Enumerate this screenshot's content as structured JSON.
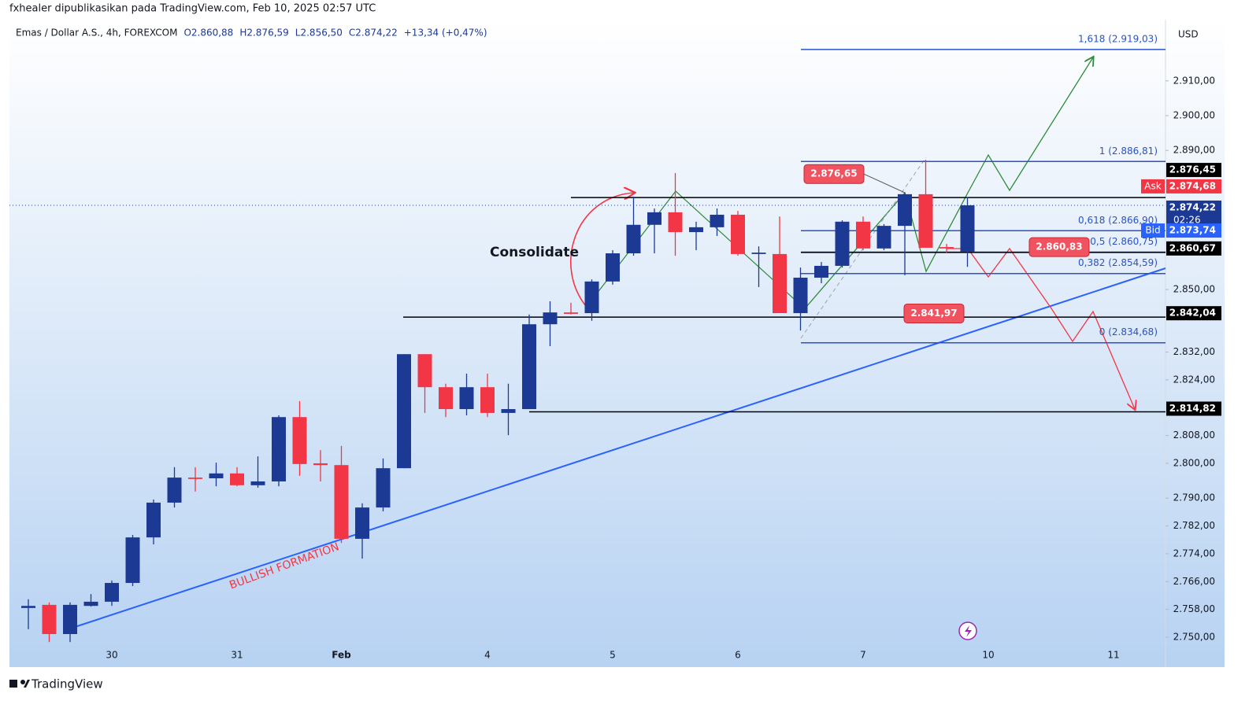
{
  "header": "fxhealer dipublikasikan pada TradingView.com, Feb 10, 2025 02:57 UTC",
  "footer": "TradingView",
  "chart_data": {
    "type": "candlestick",
    "symbol": "Emas / Dollar A.S., 4h, FOREXCOM",
    "ohlc_labels": [
      "O2.860,88",
      "H2.876,59",
      "L2.856,50",
      "C2.874,22",
      "+13,34 (+0,47%)"
    ],
    "currency": "USD",
    "categories": [
      null,
      null,
      null,
      null,
      "30",
      null,
      null,
      null,
      null,
      null,
      "31",
      null,
      null,
      null,
      null,
      "Feb",
      null,
      null,
      null,
      null,
      null,
      null,
      "4",
      null,
      null,
      null,
      null,
      null,
      "5",
      null,
      null,
      null,
      null,
      null,
      "6",
      null,
      null,
      null,
      null,
      null,
      "7",
      null,
      null,
      null,
      null,
      null,
      "10",
      null,
      null,
      null,
      null,
      null,
      "11"
    ],
    "open": [
      2758.4,
      2759.3,
      2750.9,
      2759.0,
      2760.2,
      2765.6,
      2778.7,
      2788.7,
      2795.9,
      2795.7,
      2797.1,
      2793.7,
      2794.8,
      2813.3,
      2800.0,
      2799.5,
      2778.3,
      2787.3,
      2798.6,
      2831.4,
      2821.9,
      2815.6,
      2821.9,
      2814.5,
      2815.6,
      2840.0,
      2843.4,
      2843.2,
      2852.3,
      2860.4,
      2868.6,
      2872.2,
      2866.5,
      2867.9,
      2871.5,
      2860.2,
      2860.2,
      2843.2,
      2853.4,
      2856.8,
      2869.5,
      2861.8,
      2868.3,
      2877.4,
      2862.2,
      2860.88,
      null,
      null,
      null,
      null,
      null,
      null,
      null
    ],
    "high": [
      2760.9,
      2760.0,
      2760.0,
      2762.4,
      2766.3,
      2779.4,
      2789.6,
      2798.9,
      2798.9,
      2800.2,
      2798.9,
      2802.0,
      2813.8,
      2817.9,
      2803.8,
      2805.0,
      2788.5,
      2801.4,
      2831.4,
      2831.4,
      2822.9,
      2825.8,
      2825.8,
      2822.9,
      2842.8,
      2846.6,
      2846.2,
      2852.9,
      2861.3,
      2876.7,
      2873.3,
      2883.5,
      2869.5,
      2873.3,
      2872.6,
      2862.4,
      2871.0,
      2856.3,
      2857.9,
      2869.9,
      2871.0,
      2868.8,
      2877.8,
      2887.3,
      2863.1,
      2876.59,
      null,
      null,
      null,
      null,
      null,
      null,
      null
    ],
    "low": [
      2752.3,
      2748.6,
      2748.6,
      2758.8,
      2759.0,
      2764.7,
      2776.7,
      2787.3,
      2791.9,
      2793.4,
      2793.4,
      2793.0,
      2793.4,
      2796.4,
      2794.8,
      2777.1,
      2772.6,
      2786.2,
      2798.6,
      2814.5,
      2813.3,
      2813.8,
      2813.3,
      2808.1,
      2815.6,
      2833.7,
      2842.8,
      2841.0,
      2851.4,
      2859.7,
      2860.4,
      2859.7,
      2861.3,
      2865.4,
      2859.7,
      2850.7,
      2843.2,
      2838.2,
      2851.8,
      2856.3,
      2861.3,
      2861.3,
      2854.1,
      2862.0,
      2860.4,
      2856.5,
      null,
      null,
      null,
      null,
      null,
      null,
      null
    ],
    "close": [
      2759.0,
      2750.9,
      2759.3,
      2760.2,
      2765.6,
      2778.7,
      2788.7,
      2795.9,
      2795.5,
      2797.1,
      2793.7,
      2794.8,
      2813.3,
      2799.8,
      2799.5,
      2778.3,
      2787.3,
      2798.6,
      2831.4,
      2821.9,
      2815.6,
      2821.9,
      2814.5,
      2815.6,
      2840.0,
      2843.4,
      2843.0,
      2852.3,
      2860.4,
      2868.6,
      2872.2,
      2866.5,
      2867.9,
      2871.5,
      2860.2,
      2860.6,
      2843.2,
      2853.4,
      2856.8,
      2869.5,
      2861.8,
      2868.3,
      2877.4,
      2862.0,
      2861.8,
      2874.22,
      null,
      null,
      null,
      null,
      null,
      null,
      null
    ],
    "up_color": "#1c3a94",
    "down_color": "#f23645",
    "ylim": [
      2741.4,
      2927.6
    ],
    "yticks": [
      {
        "value": 2750,
        "label": "2.750,00"
      },
      {
        "value": 2758,
        "label": "2.758,00"
      },
      {
        "value": 2766,
        "label": "2.766,00"
      },
      {
        "value": 2774,
        "label": "2.774,00"
      },
      {
        "value": 2782,
        "label": "2.782,00"
      },
      {
        "value": 2790,
        "label": "2.790,00"
      },
      {
        "value": 2800,
        "label": "2.800,00"
      },
      {
        "value": 2808,
        "label": "2.808,00"
      },
      {
        "value": 2824,
        "label": "2.824,00"
      },
      {
        "value": 2832,
        "label": "2.832,00"
      },
      {
        "value": 2850,
        "label": "2.850,00"
      },
      {
        "value": 2890,
        "label": "2.890,00"
      },
      {
        "value": 2900,
        "label": "2.900,00"
      },
      {
        "value": 2910,
        "label": "2.910,00"
      }
    ],
    "fib_levels": [
      {
        "value": 2919.03,
        "label": "1,618 (2.919,03)"
      },
      {
        "value": 2886.81,
        "label": "1 (2.886,81)"
      },
      {
        "value": 2866.9,
        "label": "0,618 (2.866,90)"
      },
      {
        "value": 2860.75,
        "label": "0,5 (2.860,75)"
      },
      {
        "value": 2854.59,
        "label": "0,382 (2.854,59)"
      },
      {
        "value": 2834.68,
        "label": "0 (2.834,68)"
      }
    ],
    "price_tags": [
      {
        "value": 2876.45,
        "label": "2.876,45"
      },
      {
        "value": 2874.68,
        "label": "2.874,68",
        "tag": "Ask"
      },
      {
        "value": 2874.22,
        "label": "2.874,22",
        "countdown": "02:26"
      },
      {
        "value": 2873.74,
        "label": "2.873,74",
        "tag": "Bid"
      },
      {
        "value": 2860.67,
        "label": "2.860,67"
      },
      {
        "value": 2842.04,
        "label": "2.842,04"
      },
      {
        "value": 2814.82,
        "label": "2.814,82"
      }
    ],
    "badges": [
      {
        "value": 2876.65,
        "label": "2.876,65"
      },
      {
        "value": 2860.83,
        "label": "2.860,83"
      },
      {
        "value": 2841.97,
        "label": "2.841,97"
      }
    ],
    "annotations": [
      "Consolidate",
      "BULLISH FORMATION"
    ]
  }
}
